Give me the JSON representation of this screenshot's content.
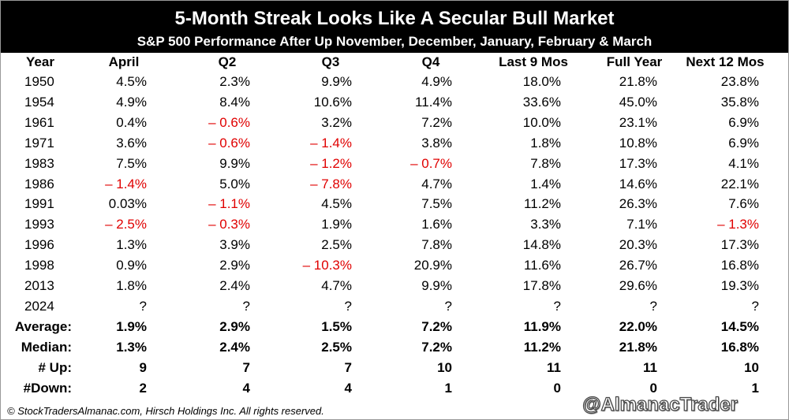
{
  "header": {
    "title": "5-Month Streak Looks Like A Secular Bull Market",
    "subtitle": "S&P 500 Performance After Up November, December, January, February  & March"
  },
  "table": {
    "columns": [
      "Year",
      "April",
      "Q2",
      "Q3",
      "Q4",
      "Last 9 Mos",
      "Full Year",
      "Next 12 Mos"
    ],
    "rows": [
      [
        "1950",
        "4.5%",
        "2.3%",
        "9.9%",
        "4.9%",
        "18.0%",
        "21.8%",
        "23.8%"
      ],
      [
        "1954",
        "4.9%",
        "8.4%",
        "10.6%",
        "11.4%",
        "33.6%",
        "45.0%",
        "35.8%"
      ],
      [
        "1961",
        "0.4%",
        "– 0.6%",
        "3.2%",
        "7.2%",
        "10.0%",
        "23.1%",
        "6.9%"
      ],
      [
        "1971",
        "3.6%",
        "– 0.6%",
        "– 1.4%",
        "3.8%",
        "1.8%",
        "10.8%",
        "6.9%"
      ],
      [
        "1983",
        "7.5%",
        "9.9%",
        "– 1.2%",
        "– 0.7%",
        "7.8%",
        "17.3%",
        "4.1%"
      ],
      [
        "1986",
        "– 1.4%",
        "5.0%",
        "– 7.8%",
        "4.7%",
        "1.4%",
        "14.6%",
        "22.1%"
      ],
      [
        "1991",
        "0.03%",
        "– 1.1%",
        "4.5%",
        "7.5%",
        "11.2%",
        "26.3%",
        "7.6%"
      ],
      [
        "1993",
        "– 2.5%",
        "– 0.3%",
        "1.9%",
        "1.6%",
        "3.3%",
        "7.1%",
        "– 1.3%"
      ],
      [
        "1996",
        "1.3%",
        "3.9%",
        "2.5%",
        "7.8%",
        "14.8%",
        "20.3%",
        "17.3%"
      ],
      [
        "1998",
        "0.9%",
        "2.9%",
        "– 10.3%",
        "20.9%",
        "11.6%",
        "26.7%",
        "16.8%"
      ],
      [
        "2013",
        "1.8%",
        "2.4%",
        "4.7%",
        "9.9%",
        "17.8%",
        "29.6%",
        "19.3%"
      ],
      [
        "2024",
        "?",
        "?",
        "?",
        "?",
        "?",
        "?",
        "?"
      ]
    ],
    "summary": [
      [
        "Average:",
        "1.9%",
        "2.9%",
        "1.5%",
        "7.2%",
        "11.9%",
        "22.0%",
        "14.5%"
      ],
      [
        "Median:",
        "1.3%",
        "2.4%",
        "2.5%",
        "7.2%",
        "11.2%",
        "21.8%",
        "16.8%"
      ],
      [
        "# Up:",
        "9",
        "7",
        "7",
        "10",
        "11",
        "11",
        "10"
      ],
      [
        "#Down:",
        "2",
        "4",
        "4",
        "1",
        "0",
        "0",
        "1"
      ]
    ]
  },
  "footer": {
    "copyright": "© StockTradersAlmanac.com, Hirsch Holdings Inc. All rights reserved.",
    "watermark": "@AlmanacTrader"
  }
}
